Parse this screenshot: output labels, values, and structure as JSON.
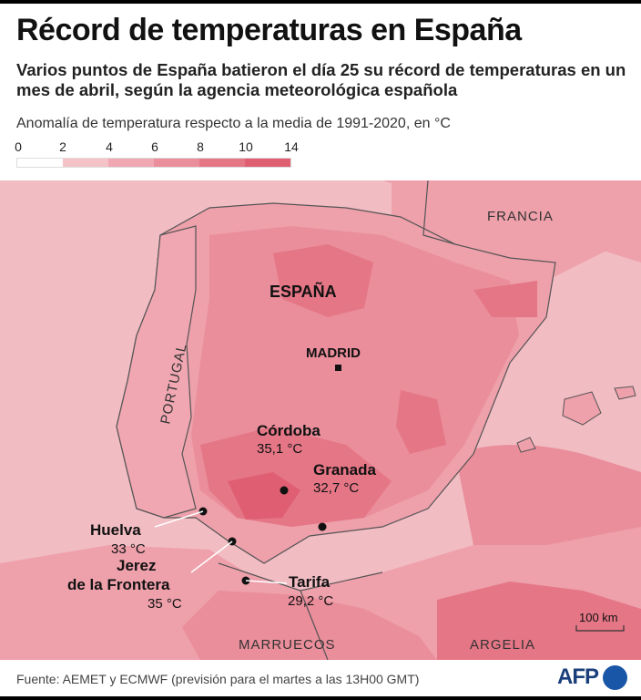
{
  "title": "Récord de temperaturas en España",
  "subtitle": "Varios puntos de España batieron el día 25 su récord de temperaturas en un mes de abril, según la agencia meteorológica española",
  "legend": {
    "title": "Anomalía de temperatura respecto a la media de 1991-2020, en °C",
    "ticks": [
      "0",
      "2",
      "4",
      "6",
      "8",
      "10",
      "14"
    ],
    "colors": [
      "#ffffff",
      "#f5c2c8",
      "#f0a7b1",
      "#ea8e9b",
      "#e57686",
      "#df5e72"
    ]
  },
  "colors": {
    "sea": "#f2bcc3",
    "land_base": "#eea0ab",
    "border": "#555555"
  },
  "countries": {
    "spain": "ESPAÑA",
    "portugal": "PORTUGAL",
    "france": "FRANCIA",
    "morocco": "MARRUECOS",
    "algeria": "ARGELIA"
  },
  "capital": {
    "name": "MADRID"
  },
  "cities": [
    {
      "name": "Córdoba",
      "value": "35,1 °C"
    },
    {
      "name": "Granada",
      "value": "32,7 °C"
    },
    {
      "name": "Huelva",
      "value": "33 °C"
    },
    {
      "name_line1": "Jerez",
      "name_line2": "de la Frontera",
      "value": "35 °C"
    },
    {
      "name": "Tarifa",
      "value": "29,2 °C"
    }
  ],
  "scale": "100 km",
  "source": "Fuente: AEMET y ECMWF (previsión para el martes a las 13H00 GMT)",
  "brand": "AFP"
}
